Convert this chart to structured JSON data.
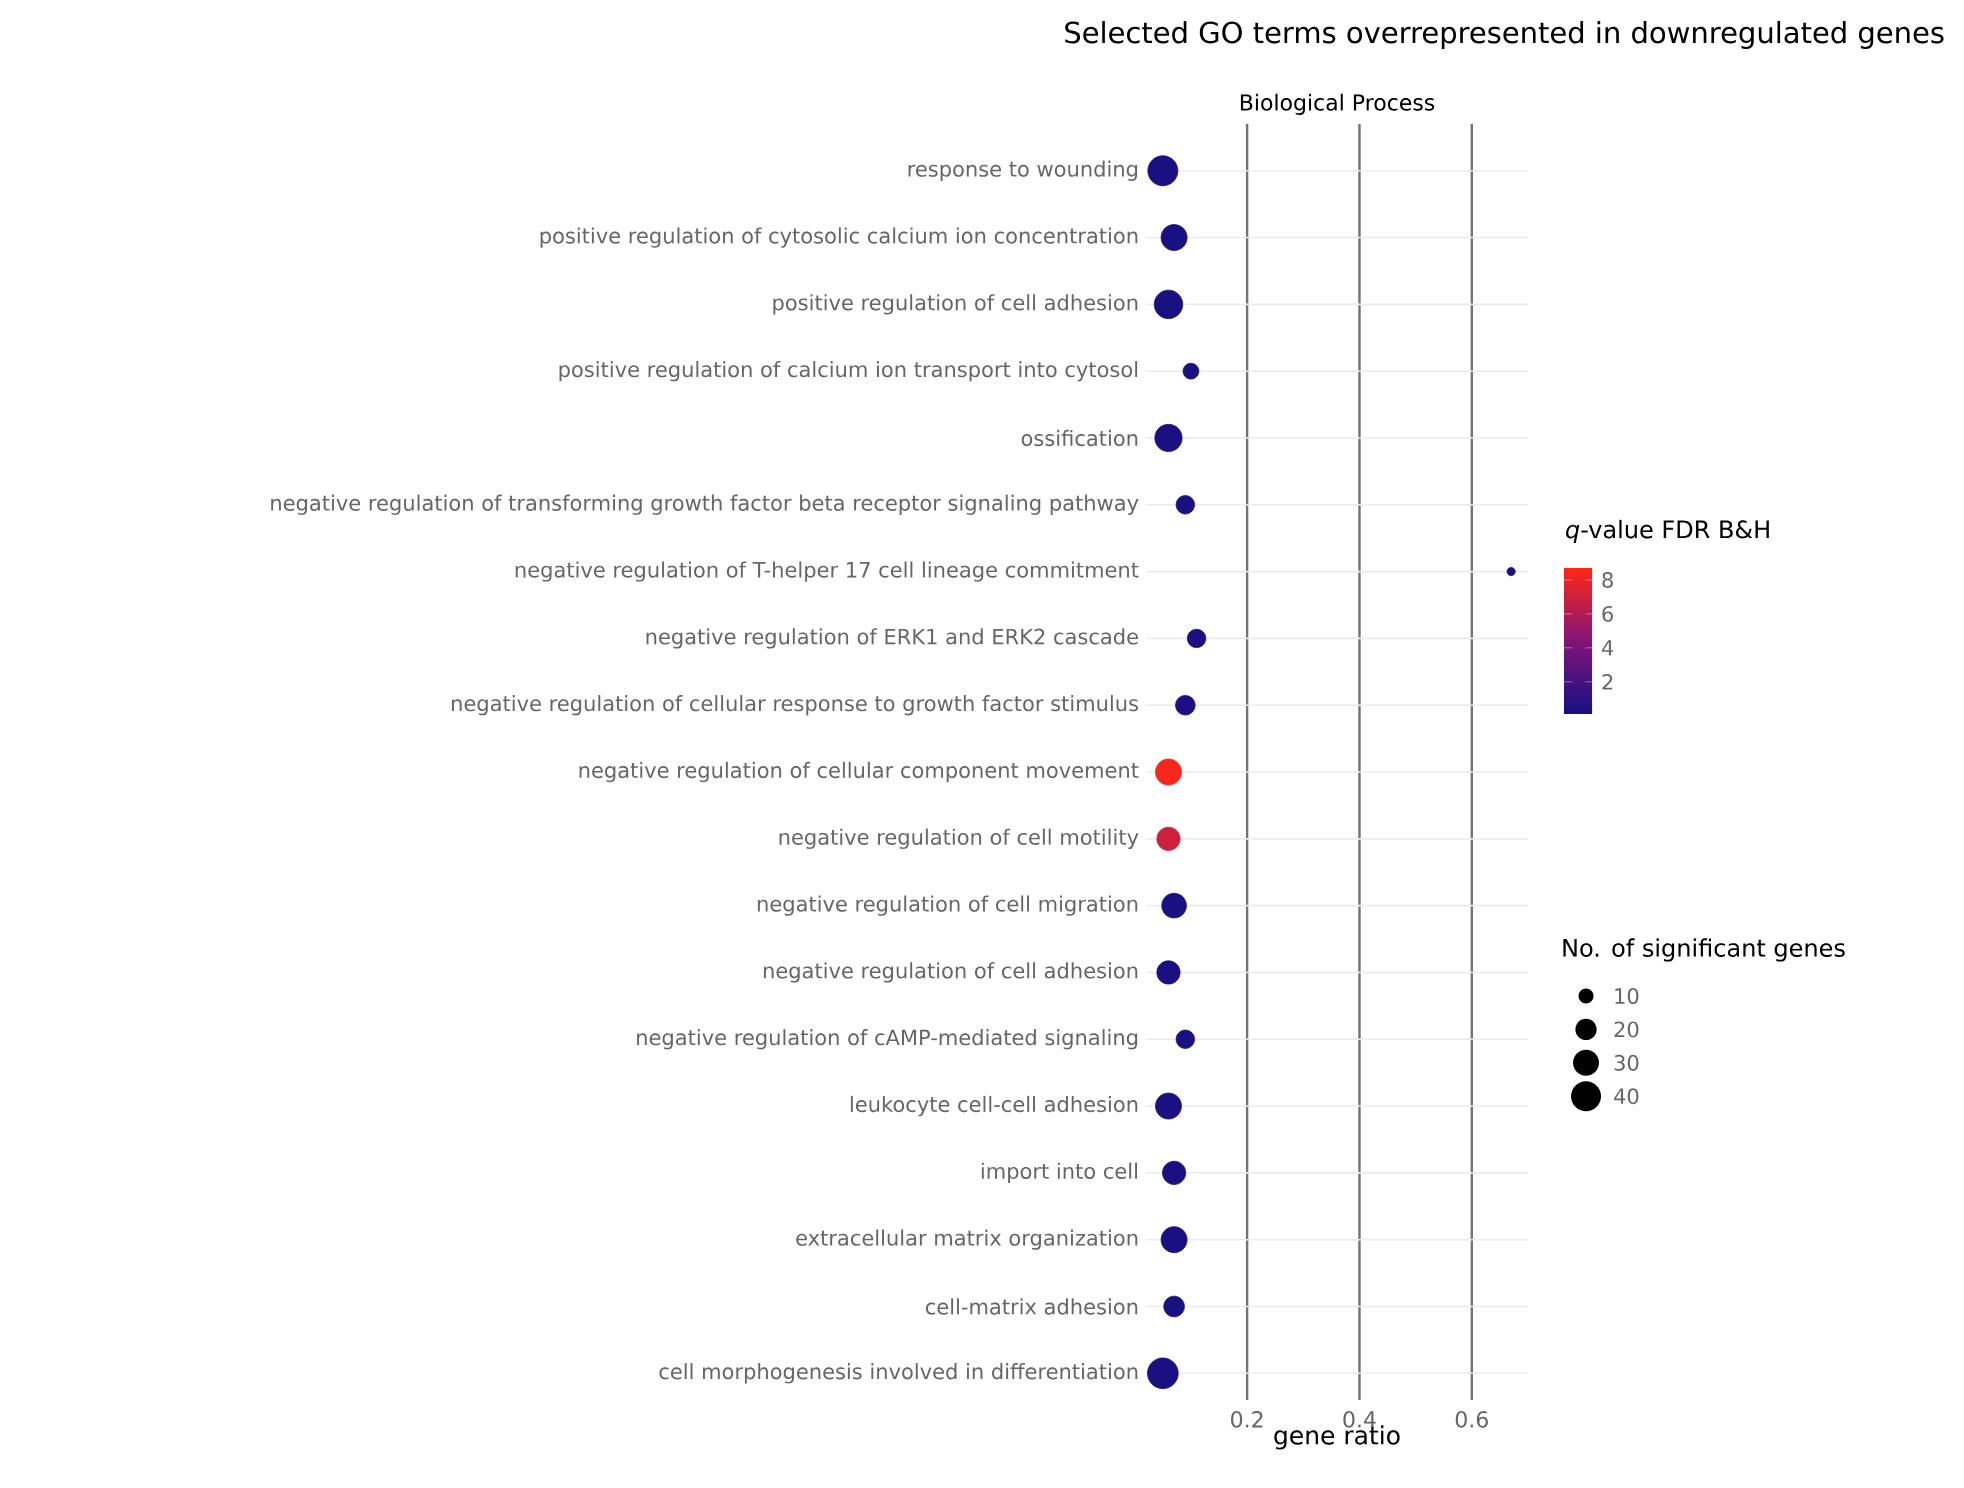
{
  "chart_data": {
    "type": "bubble",
    "orientation": "horizontal",
    "title": "Selected GO terms overrepresented in downregulated genes",
    "subtitle": "Biological Process",
    "xlabel": "gene ratio",
    "categories": [
      "response to wounding",
      "positive regulation of cytosolic calcium ion concentration",
      "positive regulation of cell adhesion",
      "positive regulation of calcium ion transport into cytosol",
      "ossification",
      "negative regulation of transforming growth factor beta receptor signaling pathway",
      "negative regulation of T-helper 17 cell lineage commitment",
      "negative regulation of ERK1 and ERK2 cascade",
      "negative regulation of cellular response to growth factor stimulus",
      "negative regulation of cellular component movement",
      "negative regulation of cell motility",
      "negative regulation of cell migration",
      "negative regulation of cell adhesion",
      "negative regulation of cAMP-mediated signaling",
      "leukocyte cell-cell adhesion",
      "import into cell",
      "extracellular matrix organization",
      "cell-matrix adhesion",
      "cell morphogenesis involved in differentiation"
    ],
    "values": [
      0.05,
      0.07,
      0.06,
      0.1,
      0.06,
      0.09,
      0.67,
      0.11,
      0.09,
      0.06,
      0.06,
      0.07,
      0.06,
      0.09,
      0.06,
      0.07,
      0.07,
      0.07,
      0.05
    ],
    "sizes": [
      40,
      30,
      36,
      11,
      33,
      15,
      3,
      15,
      17,
      30,
      24,
      27,
      24,
      15,
      30,
      24,
      30,
      19,
      42
    ],
    "cvalues": [
      0.3,
      0.3,
      0.3,
      0.3,
      0.3,
      0.3,
      0.3,
      0.3,
      0.3,
      8.5,
      7,
      0.3,
      0.3,
      0.3,
      0.3,
      0.3,
      0.3,
      0.3,
      0.3
    ],
    "clim": [
      0.1,
      8.7
    ],
    "cticks": [
      2,
      4,
      6,
      8
    ],
    "clabel": "*q*-value FDR B&H",
    "legend_title": "No. of significant genes",
    "size_legend": [
      10,
      20,
      30,
      40
    ],
    "xlim": [
      0.02,
      0.7
    ],
    "xticks": [
      0.2,
      0.4,
      0.6
    ],
    "grid": true,
    "marker": "circle"
  }
}
